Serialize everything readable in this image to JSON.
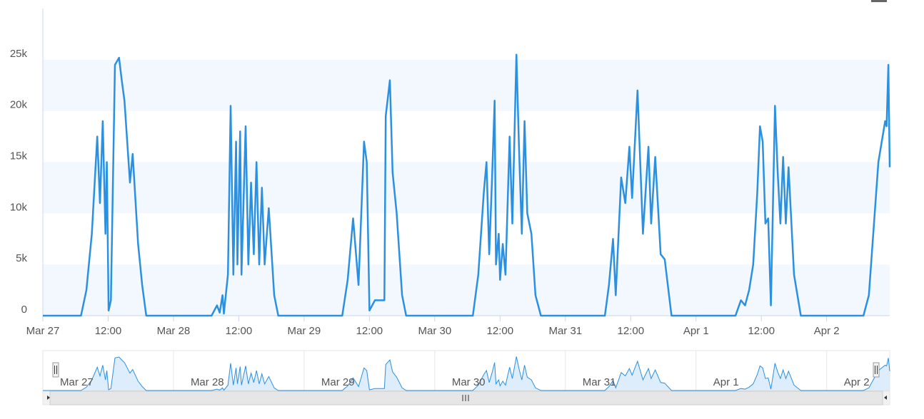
{
  "chart_data": {
    "type": "line",
    "color": "#2b90e0",
    "alternate_grid_color": "#f2f8fd",
    "x": [
      "Mar 27 00:00",
      "Mar 27 07:00",
      "Mar 27 08:00",
      "Mar 27 09:00",
      "Mar 27 10:00",
      "Mar 27 10:30",
      "Mar 27 11:00",
      "Mar 27 11:30",
      "Mar 27 11:45",
      "Mar 27 12:05",
      "Mar 27 12:30",
      "Mar 27 13:15",
      "Mar 27 14:00",
      "Mar 27 14:30",
      "Mar 27 15:00",
      "Mar 27 16:00",
      "Mar 27 16:30",
      "Mar 27 17:30",
      "Mar 27 18:15",
      "Mar 27 19:00",
      "Mar 28 07:00",
      "Mar 28 08:00",
      "Mar 28 08:30",
      "Mar 28 09:00",
      "Mar 28 09:15",
      "Mar 28 10:00",
      "Mar 28 10:30",
      "Mar 28 11:00",
      "Mar 28 11:30",
      "Mar 28 11:45",
      "Mar 28 12:15",
      "Mar 28 12:30",
      "Mar 28 13:15",
      "Mar 28 13:45",
      "Mar 28 14:15",
      "Mar 28 14:45",
      "Mar 28 15:15",
      "Mar 28 15:45",
      "Mar 28 16:15",
      "Mar 28 16:45",
      "Mar 28 17:30",
      "Mar 28 18:30",
      "Mar 28 19:15",
      "Mar 29 07:00",
      "Mar 29 08:00",
      "Mar 29 09:00",
      "Mar 29 10:00",
      "Mar 29 11:00",
      "Mar 29 11:30",
      "Mar 29 12:00",
      "Mar 29 13:00",
      "Mar 29 14:45",
      "Mar 29 15:00",
      "Mar 29 15:45",
      "Mar 29 16:15",
      "Mar 29 17:00",
      "Mar 29 18:00",
      "Mar 29 18:45",
      "Mar 30 07:00",
      "Mar 30 08:00",
      "Mar 30 09:00",
      "Mar 30 09:30",
      "Mar 30 10:00",
      "Mar 30 10:30",
      "Mar 30 11:00",
      "Mar 30 11:15",
      "Mar 30 11:45",
      "Mar 30 12:00",
      "Mar 30 12:30",
      "Mar 30 13:00",
      "Mar 30 13:45",
      "Mar 30 14:15",
      "Mar 30 15:00",
      "Mar 30 15:30",
      "Mar 30 16:00",
      "Mar 30 16:30",
      "Mar 30 17:00",
      "Mar 30 17:45",
      "Mar 30 18:30",
      "Mar 30 19:30",
      "Mar 31 07:15",
      "Mar 31 08:00",
      "Mar 31 08:45",
      "Mar 31 09:15",
      "Mar 31 10:15",
      "Mar 31 11:00",
      "Mar 31 11:45",
      "Mar 31 12:15",
      "Mar 31 13:15",
      "Mar 31 14:15",
      "Mar 31 15:15",
      "Mar 31 15:45",
      "Mar 31 16:30",
      "Mar 31 17:30",
      "Mar 31 18:15",
      "Mar 31 19:30",
      "Apr 1 07:15",
      "Apr 1 08:15",
      "Apr 1 09:00",
      "Apr 1 09:45",
      "Apr 1 10:30",
      "Apr 1 11:15",
      "Apr 1 11:45",
      "Apr 1 12:15",
      "Apr 1 12:45",
      "Apr 1 13:15",
      "Apr 1 13:45",
      "Apr 1 14:30",
      "Apr 1 15:00",
      "Apr 1 15:30",
      "Apr 1 16:00",
      "Apr 1 16:30",
      "Apr 1 17:00",
      "Apr 1 18:00",
      "Apr 1 19:15",
      "Apr 2 06:45",
      "Apr 2 07:45",
      "Apr 2 09:30",
      "Apr 2 10:45",
      "Apr 2 11:00",
      "Apr 2 11:20",
      "Apr 2 11:35"
    ],
    "values": [
      0,
      0,
      2500,
      8000,
      17500,
      11000,
      19000,
      8000,
      15000,
      500,
      1500,
      24500,
      25200,
      23000,
      21000,
      13000,
      15800,
      7000,
      3000,
      0,
      0,
      1000,
      300,
      2000,
      200,
      4000,
      20500,
      4000,
      17000,
      5000,
      18000,
      4000,
      18500,
      5000,
      13000,
      6000,
      15000,
      5000,
      12500,
      5000,
      10500,
      2000,
      0,
      0,
      3500,
      9500,
      3000,
      17000,
      15000,
      500,
      1500,
      1500,
      19500,
      23000,
      14000,
      10000,
      2000,
      0,
      0,
      4000,
      12000,
      15000,
      6000,
      13000,
      21000,
      5000,
      8000,
      3500,
      7000,
      4000,
      17500,
      9000,
      25500,
      16000,
      8000,
      19000,
      10000,
      8000,
      2000,
      0,
      0,
      3000,
      7500,
      2000,
      13500,
      11000,
      16500,
      11500,
      22000,
      8000,
      16500,
      9000,
      15500,
      6000,
      5500,
      0,
      0,
      1500,
      1000,
      2500,
      5000,
      12000,
      18500,
      17000,
      9000,
      9500,
      1000,
      20500,
      14000,
      9000,
      15500,
      9000,
      14500,
      4000,
      0,
      0,
      2000,
      15000,
      19000,
      18500,
      24500,
      14500
    ],
    "xlim": [
      "Mar 27 00:00",
      "Apr 2 11:35"
    ],
    "xticks": [
      {
        "value": "Mar 27 00:00",
        "label": "Mar 27"
      },
      {
        "value": "Mar 27 12:00",
        "label": "12:00"
      },
      {
        "value": "Mar 28 00:00",
        "label": "Mar 28"
      },
      {
        "value": "Mar 28 12:00",
        "label": "12:00"
      },
      {
        "value": "Mar 29 00:00",
        "label": "Mar 29"
      },
      {
        "value": "Mar 29 12:00",
        "label": "12:00"
      },
      {
        "value": "Mar 30 00:00",
        "label": "Mar 30"
      },
      {
        "value": "Mar 30 12:00",
        "label": "12:00"
      },
      {
        "value": "Mar 31 00:00",
        "label": "Mar 31"
      },
      {
        "value": "Mar 31 12:00",
        "label": "12:00"
      },
      {
        "value": "Apr 1 00:00",
        "label": "Apr 1"
      },
      {
        "value": "Apr 1 12:00",
        "label": "12:00"
      },
      {
        "value": "Apr 2 00:00",
        "label": "Apr 2"
      }
    ],
    "ylim": [
      0,
      30000
    ],
    "yticks": [
      0,
      {
        "value": 5000,
        "label": "5k"
      },
      {
        "value": 10000,
        "label": "10k"
      },
      {
        "value": 15000,
        "label": "15k"
      },
      {
        "value": 20000,
        "label": "20k"
      },
      {
        "value": 25000,
        "label": "25k"
      }
    ]
  }
}
